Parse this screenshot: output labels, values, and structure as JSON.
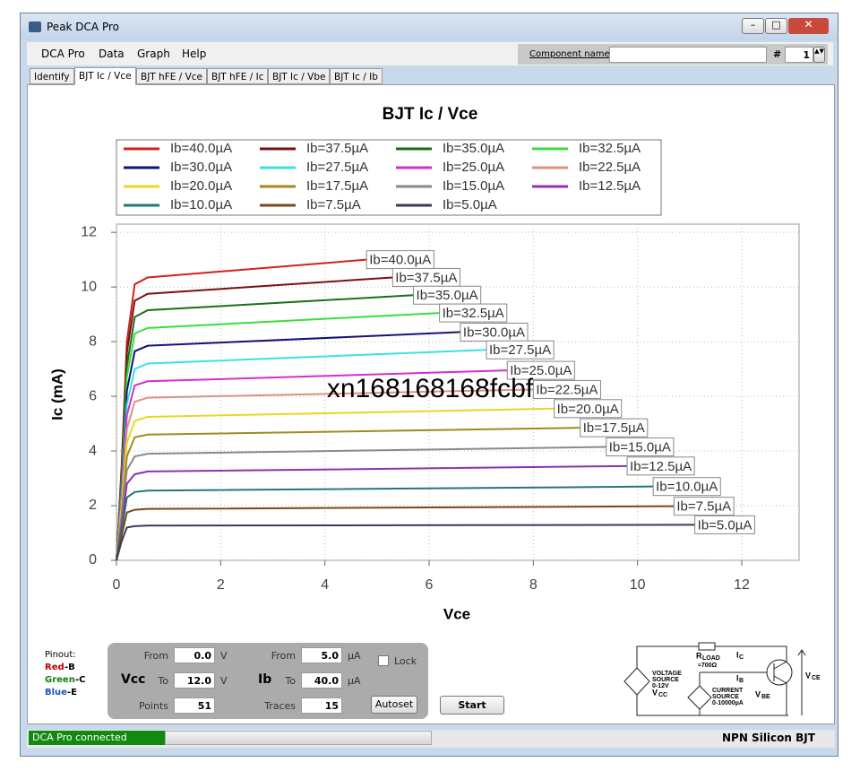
{
  "window": {
    "title": "Peak DCA Pro"
  },
  "menu": [
    "DCA Pro",
    "Data",
    "Graph",
    "Help"
  ],
  "component": {
    "label": "Component name",
    "hash": "#",
    "number": "1"
  },
  "tabs": [
    "Identify",
    "BJT Ic / Vce",
    "BJT hFE / Vce",
    "BJT hFE / Ic",
    "BJT Ic / Vbe",
    "BJT Ic / Ib"
  ],
  "chart_data": {
    "type": "line",
    "title": "BJT Ic / Vce",
    "x_label": "Vce",
    "y_label": "Ic (mA)",
    "xlim": [
      0,
      13.1
    ],
    "ylim": [
      0,
      12.3
    ],
    "xticks": [
      0,
      2,
      4,
      6,
      8,
      10,
      12
    ],
    "yticks": [
      0,
      2,
      4,
      6,
      8,
      10,
      12
    ],
    "grid": true,
    "watermark": "xn168168168fcbf",
    "series": [
      {
        "name": "Ib=40.0µA",
        "color": "#d42020",
        "x": [
          0,
          0.1,
          0.2,
          0.35,
          0.6,
          4.8
        ],
        "values": [
          0,
          3.5,
          8.0,
          10.1,
          10.35,
          11.0
        ]
      },
      {
        "name": "Ib=37.5µA",
        "color": "#7a0f0f",
        "x": [
          0,
          0.1,
          0.2,
          0.35,
          0.6,
          5.3
        ],
        "values": [
          0,
          3.3,
          7.6,
          9.5,
          9.75,
          10.35
        ]
      },
      {
        "name": "Ib=35.0µA",
        "color": "#1a6e1a",
        "x": [
          0,
          0.1,
          0.2,
          0.35,
          0.6,
          5.7
        ],
        "values": [
          0,
          3.1,
          7.1,
          8.9,
          9.15,
          9.7
        ]
      },
      {
        "name": "Ib=32.5µA",
        "color": "#3ddc3d",
        "x": [
          0,
          0.1,
          0.2,
          0.35,
          0.6,
          6.2
        ],
        "values": [
          0,
          2.9,
          6.7,
          8.3,
          8.5,
          9.05
        ]
      },
      {
        "name": "Ib=30.0µA",
        "color": "#12127a",
        "x": [
          0,
          0.1,
          0.2,
          0.35,
          0.6,
          6.6
        ],
        "values": [
          0,
          2.7,
          6.2,
          7.65,
          7.85,
          8.35
        ]
      },
      {
        "name": "Ib=27.5µA",
        "color": "#3ee0e0",
        "x": [
          0,
          0.1,
          0.2,
          0.35,
          0.6,
          7.1
        ],
        "values": [
          0,
          2.5,
          5.7,
          7.0,
          7.2,
          7.7
        ]
      },
      {
        "name": "Ib=25.0µA",
        "color": "#d030d0",
        "x": [
          0,
          0.1,
          0.2,
          0.35,
          0.6,
          7.5
        ],
        "values": [
          0,
          2.3,
          5.3,
          6.4,
          6.55,
          6.95
        ]
      },
      {
        "name": "Ib=22.5µA",
        "color": "#e09080",
        "x": [
          0,
          0.1,
          0.2,
          0.35,
          0.6,
          8.0
        ],
        "values": [
          0,
          2.1,
          4.8,
          5.8,
          5.95,
          6.25
        ]
      },
      {
        "name": "Ib=20.0µA",
        "color": "#e8d820",
        "x": [
          0,
          0.1,
          0.2,
          0.35,
          0.6,
          8.4
        ],
        "values": [
          0,
          1.9,
          4.3,
          5.1,
          5.25,
          5.55
        ]
      },
      {
        "name": "Ib=17.5µA",
        "color": "#a08a20",
        "x": [
          0,
          0.1,
          0.2,
          0.35,
          0.6,
          8.9
        ],
        "values": [
          0,
          1.7,
          3.8,
          4.5,
          4.6,
          4.85
        ]
      },
      {
        "name": "Ib=15.0µA",
        "color": "#8a8a8a",
        "x": [
          0,
          0.1,
          0.2,
          0.35,
          0.6,
          9.4
        ],
        "values": [
          0,
          1.5,
          3.3,
          3.8,
          3.9,
          4.15
        ]
      },
      {
        "name": "Ib=12.5µA",
        "color": "#9030b0",
        "x": [
          0,
          0.1,
          0.2,
          0.35,
          0.6,
          9.8
        ],
        "values": [
          0,
          1.3,
          2.8,
          3.15,
          3.25,
          3.45
        ]
      },
      {
        "name": "Ib=10.0µA",
        "color": "#207878",
        "x": [
          0,
          0.1,
          0.2,
          0.35,
          0.6,
          10.3
        ],
        "values": [
          0,
          1.1,
          2.3,
          2.5,
          2.55,
          2.7
        ]
      },
      {
        "name": "Ib=7.5µA",
        "color": "#7a4a1a",
        "x": [
          0,
          0.1,
          0.2,
          0.35,
          0.6,
          10.7
        ],
        "values": [
          0,
          0.9,
          1.75,
          1.85,
          1.88,
          1.98
        ]
      },
      {
        "name": "Ib=5.0µA",
        "color": "#3a3a5a",
        "x": [
          0,
          0.1,
          0.2,
          0.35,
          0.6,
          11.1
        ],
        "values": [
          0,
          0.7,
          1.2,
          1.25,
          1.27,
          1.3
        ]
      }
    ]
  },
  "pinout": {
    "title": "Pinout:",
    "lines": [
      {
        "color": "Red",
        "pin": "-B"
      },
      {
        "color": "Green",
        "pin": "-C"
      },
      {
        "color": "Blue",
        "pin": "-E"
      }
    ]
  },
  "controls": {
    "vcc": {
      "label": "Vcc",
      "from_label": "From",
      "from": "0.0",
      "to_label": "To",
      "to": "12.0",
      "unit": "V",
      "count_label": "Points",
      "count": "51"
    },
    "ib": {
      "label": "Ib",
      "from_label": "From",
      "from": "5.0",
      "to_label": "To",
      "to": "40.0",
      "unit": "µA",
      "count_label": "Traces",
      "count": "15"
    },
    "lock": "Lock",
    "autoset": "Autoset",
    "start": "Start"
  },
  "circuit": {
    "r": "R",
    "r_sub": "LOAD",
    "r_value": "≈700Ω",
    "ic": "I",
    "ic_sub": "C",
    "ib": "I",
    "ib_sub": "B",
    "vsource": [
      "VOLTAGE",
      "SOURCE",
      "0-12V"
    ],
    "vcc": "V",
    "vcc_sub": "CC",
    "isource": [
      "CURRENT",
      "SOURCE",
      "0-10000µA"
    ],
    "vbe": "V",
    "vbe_sub": "BE",
    "vce": "V",
    "vce_sub": "CE"
  },
  "status": {
    "connection": "DCA Pro connected",
    "device": "NPN Silicon BJT"
  }
}
